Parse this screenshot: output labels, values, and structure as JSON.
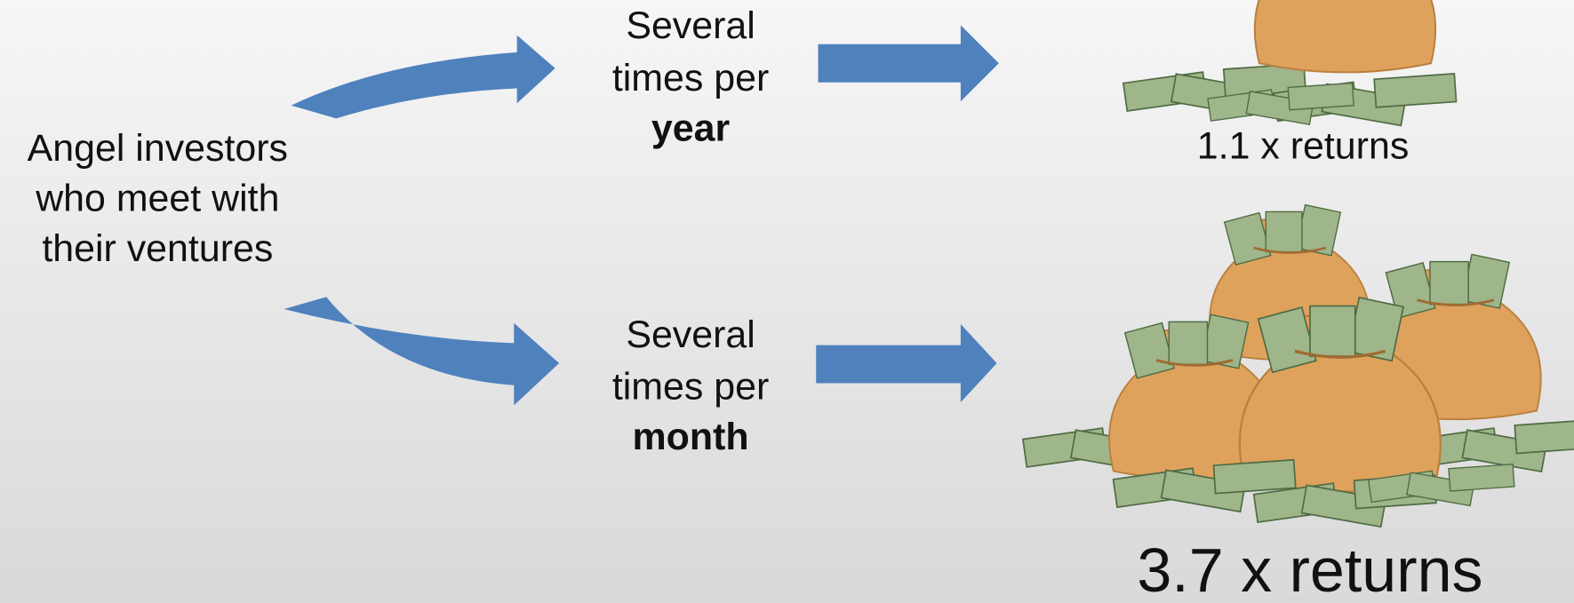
{
  "source": {
    "lines": [
      "Angel investors",
      "who meet with",
      "their ventures"
    ]
  },
  "branches": [
    {
      "lines": [
        "Several",
        "times per"
      ],
      "emphasis": "year",
      "result": "1.1 x returns"
    },
    {
      "lines": [
        "Several",
        "times per"
      ],
      "emphasis": "month",
      "result": "3.7 x returns"
    }
  ]
}
